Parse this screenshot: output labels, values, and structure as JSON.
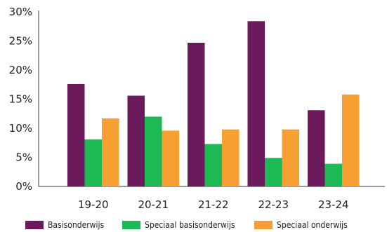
{
  "chart_data": {
    "type": "bar",
    "categories": [
      "19-20",
      "20-21",
      "21-22",
      "22-23",
      "23-24"
    ],
    "series": [
      {
        "name": "Basisonderwijs",
        "color": "#6B1A5B",
        "values": [
          17.6,
          15.6,
          24.7,
          28.4,
          13.1
        ]
      },
      {
        "name": "Speciaal basisonderwijs",
        "color": "#1DB954",
        "values": [
          8.1,
          12.0,
          7.3,
          4.9,
          3.9
        ]
      },
      {
        "name": "Speciaal onderwijs",
        "color": "#F6A033",
        "values": [
          11.7,
          9.6,
          9.8,
          9.8,
          15.8
        ]
      }
    ],
    "ylim": [
      0,
      30
    ],
    "yticks": [
      "0%",
      "5%",
      "10%",
      "15%",
      "20%",
      "25%",
      "30%"
    ],
    "grid": false,
    "legend_position": "bottom"
  }
}
